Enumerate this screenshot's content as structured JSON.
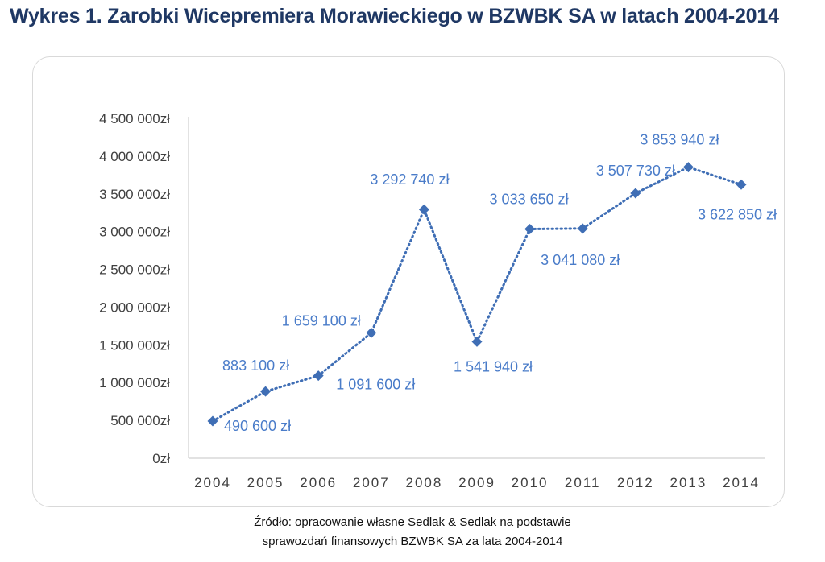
{
  "title": "Wykres 1. Zarobki Wicepremiera Morawieckiego w BZWBK SA w latach 2004-2014",
  "source": {
    "line1": "Źródło: opracowanie własne Sedlak & Sedlak na podstawie",
    "line2": "sprawozdań finansowych BZWBK SA za lata 2004-2014"
  },
  "colors": {
    "series": "#3f6eb5",
    "data_label": "#4a7cc9",
    "axis_text": "#404040",
    "axis_line": "#d9d9d9",
    "title": "#1f3864"
  },
  "chart_data": {
    "type": "line",
    "title": "Wykres 1. Zarobki Wicepremiera Morawieckiego w BZWBK SA w latach 2004-2014",
    "xlabel": "",
    "ylabel": "",
    "ylim": [
      0,
      4500000
    ],
    "ytick_step": 500000,
    "y_tick_labels": [
      "0zł",
      "500 000zł",
      "1 000 000zł",
      "1 500 000zł",
      "2 000 000zł",
      "2 500 000zł",
      "3 000 000zł",
      "3 500 000zł",
      "4 000 000zł",
      "4 500 000zł"
    ],
    "grid": false,
    "legend": "none",
    "line_style": "dotted",
    "marker": "diamond",
    "categories": [
      "2004",
      "2005",
      "2006",
      "2007",
      "2008",
      "2009",
      "2010",
      "2011",
      "2012",
      "2013",
      "2014"
    ],
    "values": [
      490600,
      883100,
      1091600,
      1659100,
      3292740,
      1541940,
      3033650,
      3041080,
      3507730,
      3853940,
      3622850
    ],
    "data_labels": [
      "490 600 zł",
      "883 100 zł",
      "1 091 600 zł",
      "1 659 100 zł",
      "3 292 740 zł",
      "1 541 940 zł",
      "3 033 650 zł",
      "3 041 080 zł",
      "3 507 730 zł",
      "3 853 940 zł",
      "3 622 850 zł"
    ]
  }
}
